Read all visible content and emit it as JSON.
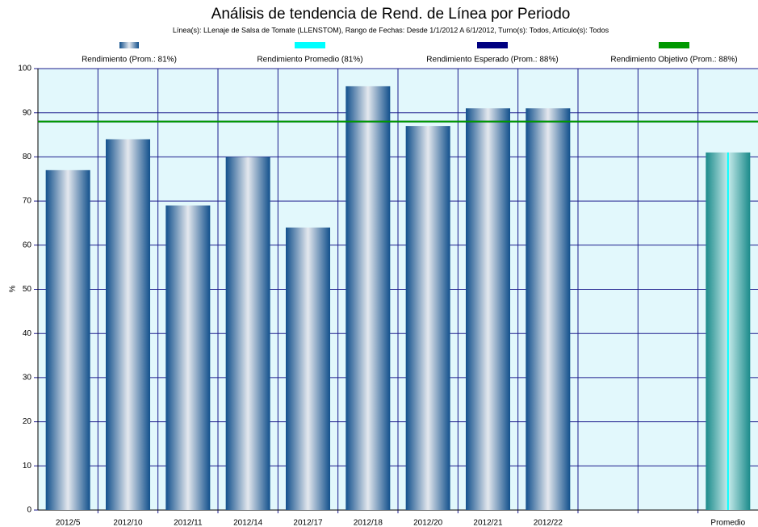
{
  "chart_data": {
    "type": "bar",
    "title": "Análisis de tendencia de Rend. de Línea por Periodo",
    "subtitle": "Línea(s): LLenaje de Salsa de Tomate (LLENSTOM), Rango de Fechas: Desde 1/1/2012 A 6/1/2012, Turno(s): Todos, Artículo(s): Todos",
    "y_label": "%",
    "categories": [
      "2012/5",
      "2012/10",
      "2012/11",
      "2012/14",
      "2012/17",
      "2012/18",
      "2012/20",
      "2012/21",
      "2012/22",
      null,
      null,
      "Promedio"
    ],
    "series": [
      {
        "name": "Rendimiento (Prom.: 81%)",
        "color": "#1f4f8f",
        "kind": "bar",
        "values": [
          77,
          84,
          69,
          80,
          64,
          96,
          87,
          91,
          91,
          null,
          null,
          null
        ]
      },
      {
        "name": "Rendimiento Promedio (81%)",
        "color": "#00ffff",
        "kind": "bar",
        "values": [
          null,
          null,
          null,
          null,
          null,
          null,
          null,
          null,
          null,
          null,
          null,
          81
        ]
      },
      {
        "name": "Rendimiento Esperado (Prom.: 88%)",
        "color": "#000080",
        "kind": "line",
        "values": [
          88,
          88,
          88,
          88,
          88,
          88,
          88,
          88,
          88,
          88,
          88,
          88
        ]
      },
      {
        "name": "Rendimiento Objetivo (Prom.: 88%)",
        "color": "#009900",
        "kind": "line",
        "values": [
          88,
          88,
          88,
          88,
          88,
          88,
          88,
          88,
          88,
          88,
          88,
          88
        ]
      }
    ],
    "ylim": [
      0,
      100
    ],
    "yticks": [
      0,
      10,
      20,
      30,
      40,
      50,
      60,
      70,
      80,
      90,
      100
    ],
    "grid": true
  }
}
